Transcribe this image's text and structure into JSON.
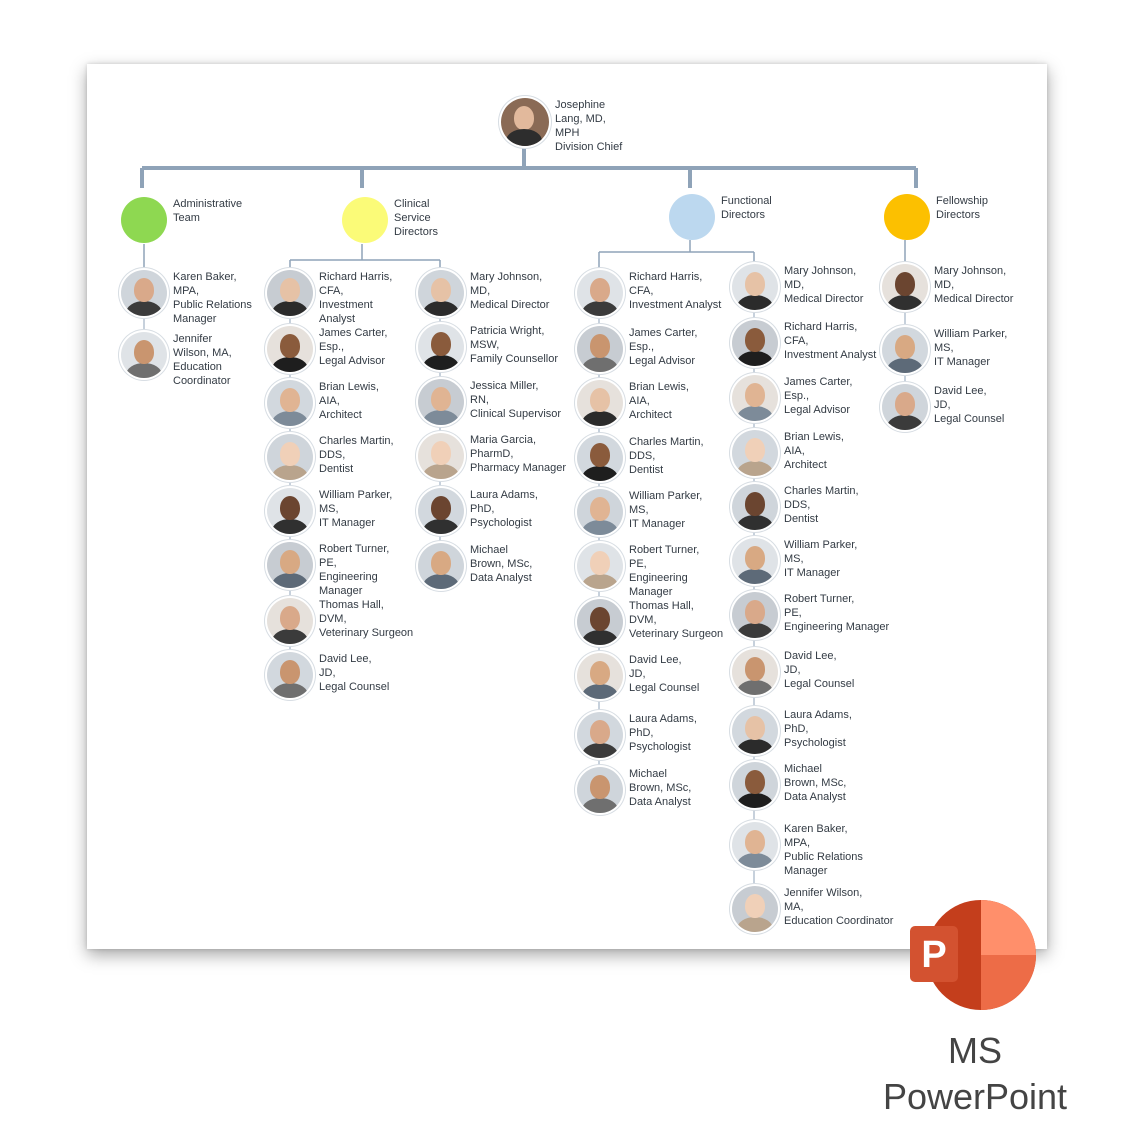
{
  "top": {
    "name": "Josephine Lang, MD, MPH",
    "title": "Division Chief"
  },
  "groups": [
    {
      "key": "admin",
      "label": "Administrative Team",
      "color": "#8ed851"
    },
    {
      "key": "clinical",
      "label": "Clinical Service Directors",
      "color": "#fbfb78"
    },
    {
      "key": "functional",
      "label": "Functional Directors",
      "color": "#bcd8ef"
    },
    {
      "key": "fellowship",
      "label": "Fellowship Directors",
      "color": "#fcc000"
    }
  ],
  "columns": {
    "admin": [
      {
        "lines": [
          "Karen Baker,",
          "MPA,",
          "Public Relations",
          "Manager"
        ]
      },
      {
        "lines": [
          "Jennifer",
          "Wilson, MA,",
          "Education",
          "Coordinator"
        ]
      }
    ],
    "clinical_a": [
      {
        "lines": [
          "Richard Harris,",
          "CFA,",
          "Investment",
          "Analyst"
        ]
      },
      {
        "lines": [
          "James Carter,",
          "Esp.,",
          "Legal Advisor"
        ]
      },
      {
        "lines": [
          "Brian Lewis,",
          "AIA,",
          "Architect"
        ]
      },
      {
        "lines": [
          "Charles Martin,",
          "DDS,",
          "Dentist"
        ]
      },
      {
        "lines": [
          "William Parker,",
          "MS,",
          "IT Manager"
        ]
      },
      {
        "lines": [
          "Robert Turner,",
          "PE,",
          "Engineering",
          "Manager"
        ]
      },
      {
        "lines": [
          "Thomas Hall,",
          "DVM,",
          "Veterinary Surgeon"
        ]
      },
      {
        "lines": [
          "David Lee,",
          "JD,",
          "Legal Counsel"
        ]
      }
    ],
    "clinical_b": [
      {
        "lines": [
          "Mary Johnson,",
          "MD,",
          "Medical Director"
        ]
      },
      {
        "lines": [
          "Patricia Wright,",
          "MSW,",
          "Family Counsellor"
        ]
      },
      {
        "lines": [
          "Jessica Miller,",
          "RN,",
          "Clinical Supervisor"
        ]
      },
      {
        "lines": [
          "Maria Garcia,",
          "PharmD,",
          "Pharmacy Manager"
        ]
      },
      {
        "lines": [
          "Laura Adams,",
          "PhD,",
          "Psychologist"
        ]
      },
      {
        "lines": [
          "Michael",
          "Brown, MSc,",
          "Data Analyst"
        ]
      }
    ],
    "functional_a": [
      {
        "lines": [
          "Richard Harris,",
          "CFA,",
          "Investment Analyst"
        ]
      },
      {
        "lines": [
          "James Carter,",
          "Esp.,",
          "Legal Advisor"
        ]
      },
      {
        "lines": [
          "Brian Lewis,",
          "AIA,",
          "Architect"
        ]
      },
      {
        "lines": [
          "Charles Martin,",
          "DDS,",
          "Dentist"
        ]
      },
      {
        "lines": [
          "William Parker,",
          "MS,",
          "IT Manager"
        ]
      },
      {
        "lines": [
          "Robert Turner,",
          "PE,",
          "Engineering",
          "Manager"
        ]
      },
      {
        "lines": [
          "Thomas Hall,",
          "DVM,",
          "Veterinary Surgeon"
        ]
      },
      {
        "lines": [
          "David Lee,",
          "JD,",
          "Legal Counsel"
        ]
      },
      {
        "lines": [
          "Laura Adams,",
          "PhD,",
          "Psychologist"
        ]
      },
      {
        "lines": [
          "Michael",
          "Brown, MSc,",
          "Data Analyst"
        ]
      }
    ],
    "functional_b": [
      {
        "lines": [
          "Mary Johnson,",
          "MD,",
          "Medical Director"
        ]
      },
      {
        "lines": [
          "Richard Harris,",
          "CFA,",
          "Investment Analyst"
        ]
      },
      {
        "lines": [
          "James Carter,",
          "Esp.,",
          "Legal Advisor"
        ]
      },
      {
        "lines": [
          "Brian Lewis,",
          "AIA,",
          "Architect"
        ]
      },
      {
        "lines": [
          "Charles Martin,",
          "DDS,",
          "Dentist"
        ]
      },
      {
        "lines": [
          "William Parker,",
          "MS,",
          "IT Manager"
        ]
      },
      {
        "lines": [
          "Robert Turner,",
          "PE,",
          "Engineering Manager"
        ]
      },
      {
        "lines": [
          "David Lee,",
          "JD,",
          "Legal Counsel"
        ]
      },
      {
        "lines": [
          "Laura Adams,",
          "PhD,",
          "Psychologist"
        ]
      },
      {
        "lines": [
          "Michael",
          "Brown, MSc,",
          "Data Analyst"
        ]
      },
      {
        "lines": [
          "Karen Baker,",
          "MPA,",
          "Public Relations",
          "Manager"
        ]
      },
      {
        "lines": [
          "Jennifer Wilson,",
          "MA,",
          "Education Coordinator"
        ]
      }
    ],
    "fellowship": [
      {
        "lines": [
          "Mary Johnson,",
          "MD,",
          "Medical Director"
        ]
      },
      {
        "lines": [
          "William Parker,",
          "MS,",
          "IT Manager"
        ]
      },
      {
        "lines": [
          "David Lee,",
          "JD,",
          "Legal Counsel"
        ]
      }
    ]
  },
  "colors": {
    "line": "#8fa3b8",
    "logo_dark": "#c43e1c",
    "logo_mid": "#ed6c47",
    "logo_light": "#ff8f6b",
    "logo_badge": "#d35230"
  },
  "logo": {
    "letter": "P"
  },
  "brand": {
    "line1": "MS",
    "line2": "PowerPoint"
  }
}
